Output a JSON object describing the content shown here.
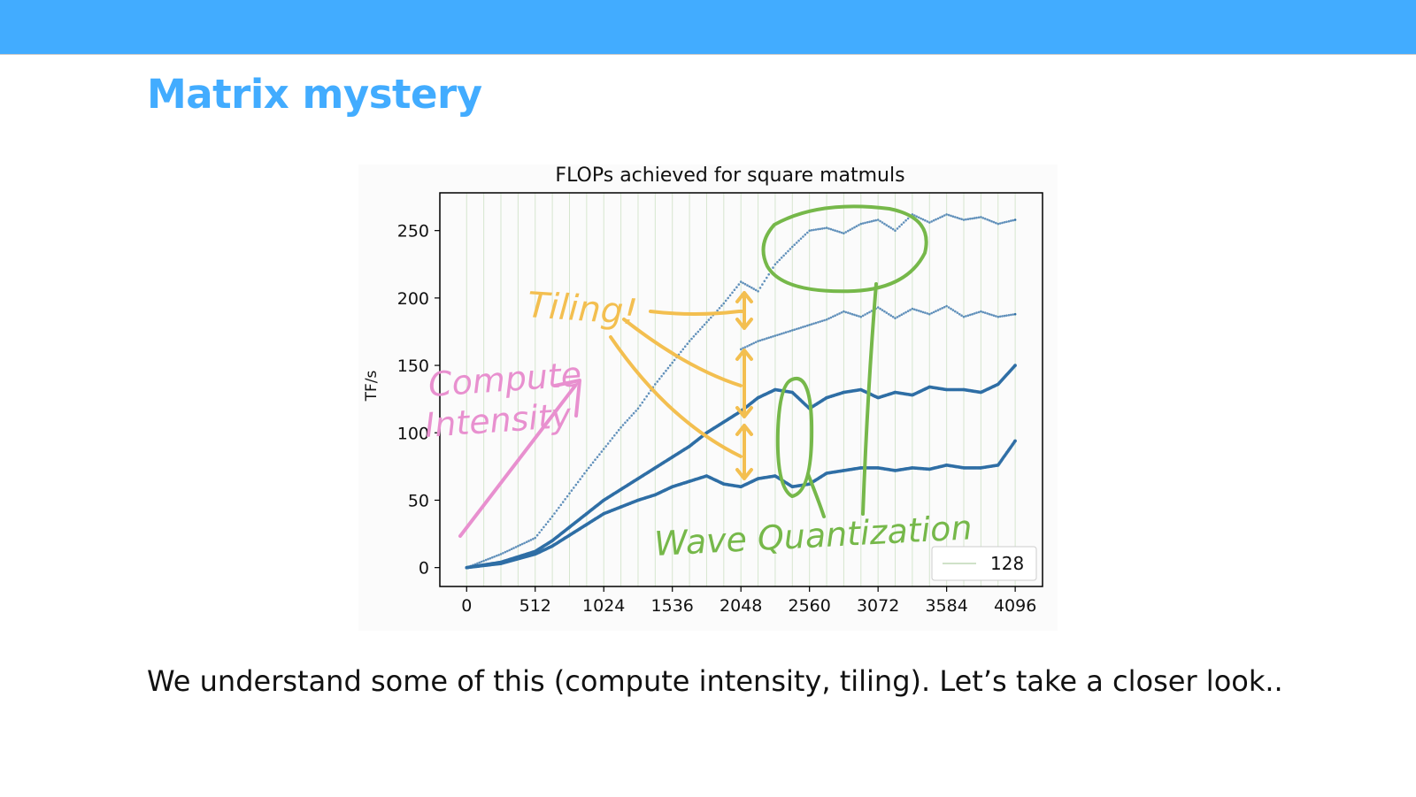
{
  "slide": {
    "title": "Matrix mystery",
    "caption": "We understand some of this (compute intensity, tiling). Let’s take a closer look..",
    "accent_color": "#42acff"
  },
  "chart_data": {
    "type": "scatter",
    "title": "FLOPs achieved for square matmuls",
    "xlabel": "",
    "ylabel": "TF/s",
    "xlim": [
      -200,
      4300
    ],
    "ylim": [
      -14,
      278
    ],
    "xticks": [
      0,
      512,
      1024,
      1536,
      2048,
      2560,
      3072,
      3584,
      4096
    ],
    "yticks": [
      0,
      50,
      100,
      150,
      200,
      250
    ],
    "grid": "vertical lines every 128",
    "legend": {
      "placement": "lower-right",
      "entries": [
        "128"
      ]
    },
    "series": [
      {
        "name": "128",
        "color": "#2f6ea5",
        "marker": "small dot",
        "description": "upper scattered band",
        "x": [
          0,
          256,
          512,
          640,
          768,
          896,
          1024,
          1152,
          1280,
          1408,
          1536,
          1664,
          1792,
          1920,
          2048,
          2176,
          2304,
          2432,
          2560,
          2688,
          2816,
          2944,
          3072,
          3200,
          3328,
          3456,
          3584,
          3712,
          3840,
          3968,
          4096
        ],
        "y": [
          0,
          10,
          22,
          38,
          55,
          72,
          88,
          104,
          118,
          136,
          152,
          168,
          182,
          196,
          212,
          205,
          225,
          238,
          250,
          252,
          248,
          255,
          258,
          250,
          262,
          256,
          262,
          258,
          260,
          255,
          258
        ]
      },
      {
        "name": "",
        "color": "#2f6ea5",
        "marker": "small dot",
        "description": "middle band",
        "x": [
          2048,
          2176,
          2304,
          2432,
          2560,
          2688,
          2816,
          2944,
          3072,
          3200,
          3328,
          3456,
          3584,
          3712,
          3840,
          3968,
          4096
        ],
        "y": [
          162,
          168,
          172,
          176,
          180,
          184,
          190,
          186,
          193,
          185,
          192,
          188,
          194,
          186,
          190,
          186,
          188
        ]
      },
      {
        "name": "",
        "color": "#2f6ea5",
        "marker": "dense dot",
        "description": "lower steady band",
        "x": [
          0,
          256,
          512,
          640,
          768,
          896,
          1024,
          1152,
          1280,
          1408,
          1536,
          1664,
          1792,
          1920,
          2048,
          2176,
          2304,
          2432,
          2560,
          2688,
          2816,
          2944,
          3072,
          3200,
          3328,
          3456,
          3584,
          3712,
          3840,
          3968,
          4096
        ],
        "y": [
          0,
          4,
          12,
          20,
          30,
          40,
          50,
          58,
          66,
          74,
          82,
          90,
          100,
          108,
          116,
          126,
          132,
          130,
          118,
          126,
          130,
          132,
          126,
          130,
          128,
          134,
          132,
          132,
          130,
          136,
          150
        ]
      },
      {
        "name": "",
        "color": "#2f6ea5",
        "marker": "dense dot",
        "description": "lowest band",
        "x": [
          0,
          256,
          512,
          640,
          768,
          896,
          1024,
          1152,
          1280,
          1408,
          1536,
          1664,
          1792,
          1920,
          2048,
          2176,
          2304,
          2432,
          2560,
          2688,
          2816,
          2944,
          3072,
          3200,
          3328,
          3456,
          3584,
          3712,
          3840,
          3968,
          4096
        ],
        "y": [
          0,
          3,
          10,
          16,
          24,
          32,
          40,
          45,
          50,
          54,
          60,
          64,
          68,
          62,
          60,
          66,
          68,
          60,
          62,
          70,
          72,
          74,
          74,
          72,
          74,
          73,
          76,
          74,
          74,
          76,
          94
        ]
      }
    ],
    "annotations": [
      {
        "text": "Compute",
        "color": "#e890cf"
      },
      {
        "text": "Intensity",
        "color": "#e890cf"
      },
      {
        "text": "Tiling!",
        "color": "#f3bf50"
      },
      {
        "text": "Wave Quantization",
        "color": "#76b84a"
      }
    ]
  }
}
